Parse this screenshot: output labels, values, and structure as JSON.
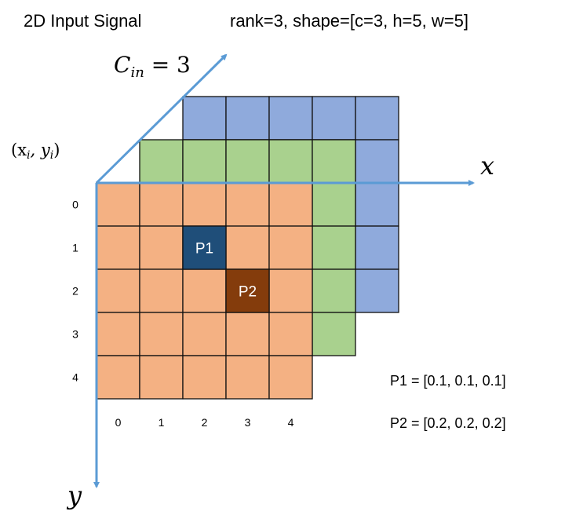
{
  "title": "2D Input Signal",
  "shape_text": "rank=3, shape=[c=3, h=5, w=5]",
  "channel_label": "C",
  "channel_sub": "in",
  "channel_eq": " = 3",
  "origin_label": "(x",
  "origin_sub_x": "i",
  "origin_mid": ", y",
  "origin_sub_y": "i",
  "origin_end": ")",
  "x_axis_label": "x",
  "y_axis_label": "y",
  "row_ticks": [
    "0",
    "1",
    "2",
    "3",
    "4"
  ],
  "col_ticks": [
    "0",
    "1",
    "2",
    "3",
    "4"
  ],
  "points": [
    {
      "label": "P1",
      "row": 1,
      "col": 2,
      "color": "#1f4e79"
    },
    {
      "label": "P2",
      "row": 2,
      "col": 3,
      "color": "#843c0c"
    }
  ],
  "values": [
    "P1 = [0.1, 0.1, 0.1]",
    "P2 = [0.2, 0.2, 0.2]"
  ],
  "grid": {
    "channels": 3,
    "h": 5,
    "w": 5
  },
  "colors": {
    "channel_0": "#f4b183",
    "channel_1": "#a9d18e",
    "channel_2": "#8faadc",
    "axis": "#5b9bd5"
  }
}
